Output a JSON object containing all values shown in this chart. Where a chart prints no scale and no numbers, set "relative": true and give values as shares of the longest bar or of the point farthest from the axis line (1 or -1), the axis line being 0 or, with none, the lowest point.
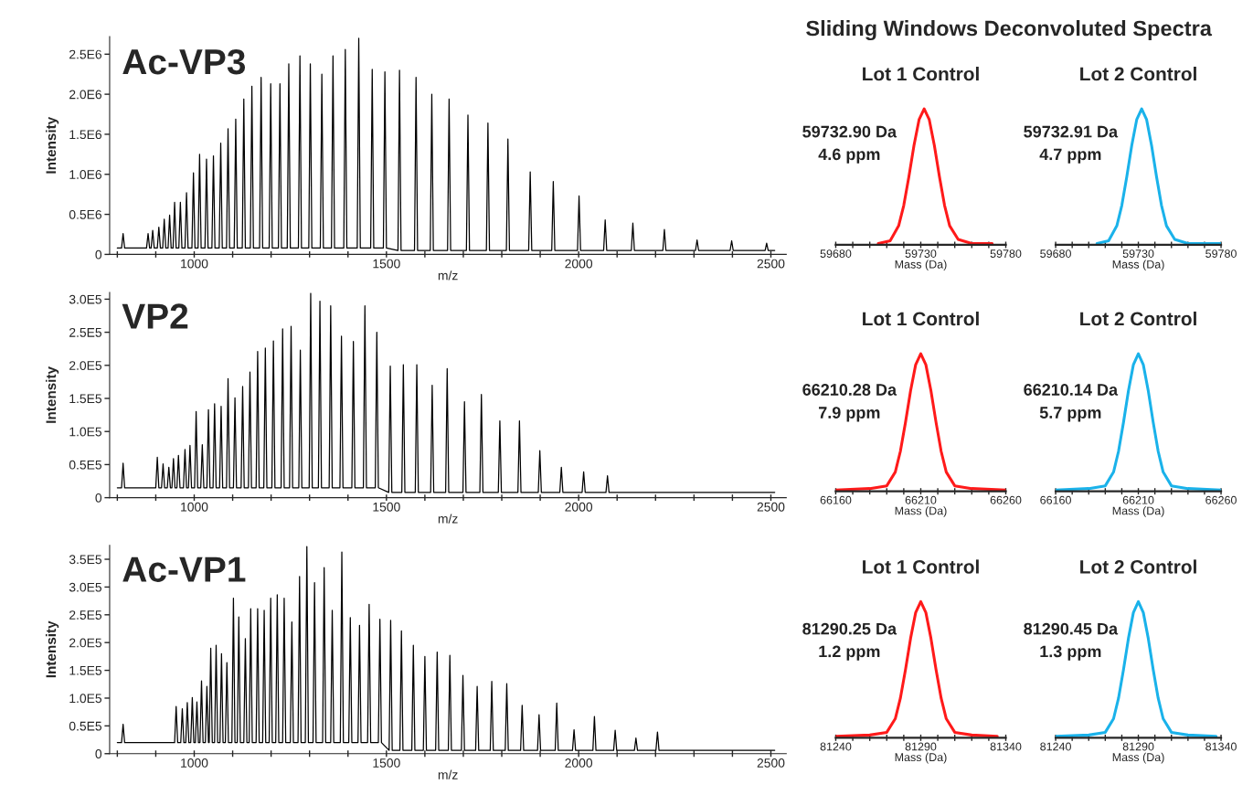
{
  "chart_data": [
    {
      "type": "other",
      "title": "Sliding Windows Deconvoluted Spectra"
    },
    {
      "type": "line",
      "title": "Ac-VP3",
      "xlabel": "m/z",
      "ylabel": "Intensity",
      "xlim": [
        780,
        2540
      ],
      "ylim": [
        0,
        2720000
      ],
      "xticks": [
        {
          "value": 800,
          "label": null
        },
        {
          "value": 900,
          "label": null
        },
        1000,
        {
          "value": 1100,
          "label": null
        },
        {
          "value": 1200,
          "label": null
        },
        {
          "value": 1300,
          "label": null
        },
        {
          "value": 1400,
          "label": null
        },
        1500,
        {
          "value": 1600,
          "label": null
        },
        {
          "value": 1700,
          "label": null
        },
        {
          "value": 1800,
          "label": null
        },
        {
          "value": 1900,
          "label": null
        },
        2000,
        {
          "value": 2100,
          "label": null
        },
        {
          "value": 2200,
          "label": null
        },
        {
          "value": 2300,
          "label": null
        },
        {
          "value": 2400,
          "label": null
        },
        2500
      ],
      "yticks": [
        0,
        {
          "value": 500000,
          "label": "0.5E6"
        },
        {
          "value": 1000000,
          "label": "1.0E6"
        },
        {
          "value": 1500000,
          "label": "1.5E6"
        },
        {
          "value": 2000000,
          "label": "2.0E6"
        },
        {
          "value": 2500000,
          "label": "2.5E6"
        }
      ],
      "x": [
        800,
        811,
        815,
        819,
        876,
        880,
        884,
        888,
        892,
        896,
        904,
        908,
        912,
        918,
        922,
        926,
        932,
        936,
        940,
        945,
        949,
        953,
        960,
        964,
        968,
        976,
        980,
        984,
        994,
        998,
        1002,
        1010,
        1014,
        1018,
        1028,
        1032,
        1036,
        1046,
        1050,
        1054,
        1065,
        1069,
        1073,
        1084,
        1088,
        1092,
        1104,
        1108,
        1112,
        1125,
        1129,
        1133,
        1146,
        1150,
        1154,
        1170,
        1174,
        1178,
        1195,
        1199,
        1203,
        1219,
        1223,
        1227,
        1242,
        1246,
        1250,
        1271,
        1275,
        1279,
        1298,
        1302,
        1306,
        1328,
        1332,
        1336,
        1357,
        1361,
        1365,
        1389,
        1393,
        1397,
        1424,
        1428,
        1432,
        1459,
        1463,
        1467,
        1492,
        1496,
        1500,
        1530,
        1534,
        1538,
        1573,
        1577,
        1581,
        1614,
        1618,
        1622,
        1659,
        1663,
        1667,
        1708,
        1712,
        1716,
        1760,
        1764,
        1768,
        1812,
        1816,
        1820,
        1870,
        1874,
        1878,
        1930,
        1934,
        1938,
        1997,
        2001,
        2005,
        2065,
        2069,
        2073,
        2137,
        2141,
        2145,
        2219,
        2223,
        2227,
        2304,
        2308,
        2312,
        2394,
        2398,
        2402,
        2485,
        2489,
        2493,
        2510
      ],
      "series": [
        {
          "color": "#000000",
          "values": [
            80000,
            80000,
            260000,
            80000,
            80000,
            260000,
            80000,
            80000,
            300000,
            80000,
            80000,
            340000,
            80000,
            80000,
            440000,
            80000,
            80000,
            490000,
            80000,
            80000,
            650000,
            80000,
            80000,
            650000,
            80000,
            80000,
            770000,
            80000,
            80000,
            1020000,
            80000,
            80000,
            1250000,
            80000,
            80000,
            1190000,
            80000,
            80000,
            1230000,
            80000,
            80000,
            1390000,
            80000,
            80000,
            1570000,
            80000,
            80000,
            1690000,
            80000,
            80000,
            1940000,
            80000,
            80000,
            2100000,
            80000,
            80000,
            2210000,
            80000,
            80000,
            2130000,
            80000,
            80000,
            2130000,
            80000,
            80000,
            2380000,
            80000,
            80000,
            2480000,
            80000,
            80000,
            2380000,
            80000,
            80000,
            2250000,
            80000,
            80000,
            2480000,
            80000,
            80000,
            2560000,
            80000,
            80000,
            2700000,
            80000,
            80000,
            2310000,
            80000,
            80000,
            2280000,
            80000,
            50000,
            2300000,
            50000,
            50000,
            2210000,
            50000,
            50000,
            2000000,
            50000,
            50000,
            1940000,
            50000,
            50000,
            1740000,
            50000,
            50000,
            1640000,
            50000,
            50000,
            1440000,
            50000,
            50000,
            1030000,
            50000,
            50000,
            910000,
            50000,
            50000,
            730000,
            50000,
            50000,
            430000,
            50000,
            50000,
            390000,
            50000,
            50000,
            310000,
            50000,
            50000,
            180000,
            50000,
            50000,
            170000,
            50000,
            50000,
            140000,
            50000,
            50000
          ]
        }
      ]
    },
    {
      "type": "line",
      "title": "Lot 1 Control",
      "xlabel": "Mass (Da)",
      "relative": true,
      "xlim": [
        59680,
        59780
      ],
      "xticks": [
        59680,
        {
          "value": 59690,
          "label": null
        },
        {
          "value": 59700,
          "label": null
        },
        {
          "value": 59710,
          "label": null
        },
        {
          "value": 59720,
          "label": null
        },
        59730,
        {
          "value": 59740,
          "label": null
        },
        {
          "value": 59750,
          "label": null
        },
        {
          "value": 59760,
          "label": null
        },
        {
          "value": 59770,
          "label": null
        },
        59780
      ],
      "annotations": [
        "59732.90 Da",
        "4.6 ppm"
      ],
      "x": [
        59705,
        59712,
        59717,
        59720,
        59723,
        59726,
        59729,
        59732,
        59735,
        59738,
        59741,
        59744,
        59747,
        59752,
        59760,
        59772
      ],
      "series": [
        {
          "color": "#ff1a1a",
          "values": [
            0.01,
            0.03,
            0.14,
            0.29,
            0.5,
            0.73,
            0.92,
            1,
            0.92,
            0.73,
            0.5,
            0.29,
            0.14,
            0.04,
            0.01,
            0.01
          ]
        }
      ]
    },
    {
      "type": "line",
      "title": "Lot 2 Control",
      "xlabel": "Mass (Da)",
      "relative": true,
      "xlim": [
        59680,
        59780
      ],
      "xticks": [
        59680,
        {
          "value": 59690,
          "label": null
        },
        {
          "value": 59700,
          "label": null
        },
        {
          "value": 59710,
          "label": null
        },
        {
          "value": 59720,
          "label": null
        },
        59730,
        {
          "value": 59740,
          "label": null
        },
        {
          "value": 59750,
          "label": null
        },
        {
          "value": 59760,
          "label": null
        },
        {
          "value": 59770,
          "label": null
        },
        59780
      ],
      "annotations": [
        "59732.91 Da",
        "4.7 ppm"
      ],
      "x": [
        59705,
        59712,
        59717,
        59720,
        59723,
        59726,
        59729,
        59732,
        59735,
        59738,
        59741,
        59744,
        59747,
        59752,
        59760,
        59780
      ],
      "series": [
        {
          "color": "#1ab2ea",
          "values": [
            0.01,
            0.03,
            0.14,
            0.29,
            0.5,
            0.73,
            0.92,
            1,
            0.92,
            0.73,
            0.5,
            0.29,
            0.14,
            0.04,
            0.01,
            0.01
          ]
        }
      ]
    },
    {
      "type": "line",
      "title": "VP2",
      "xlabel": "m/z",
      "ylabel": "Intensity",
      "xlim": [
        780,
        2540
      ],
      "ylim": [
        0,
        310000
      ],
      "xticks": [
        {
          "value": 800,
          "label": null
        },
        {
          "value": 900,
          "label": null
        },
        1000,
        {
          "value": 1100,
          "label": null
        },
        {
          "value": 1200,
          "label": null
        },
        {
          "value": 1300,
          "label": null
        },
        {
          "value": 1400,
          "label": null
        },
        1500,
        {
          "value": 1600,
          "label": null
        },
        {
          "value": 1700,
          "label": null
        },
        {
          "value": 1800,
          "label": null
        },
        {
          "value": 1900,
          "label": null
        },
        2000,
        {
          "value": 2100,
          "label": null
        },
        {
          "value": 2200,
          "label": null
        },
        {
          "value": 2300,
          "label": null
        },
        {
          "value": 2400,
          "label": null
        },
        2500
      ],
      "yticks": [
        0,
        {
          "value": 50000,
          "label": "0.5E5"
        },
        {
          "value": 100000,
          "label": "1.0E5"
        },
        {
          "value": 150000,
          "label": "1.5E5"
        },
        {
          "value": 200000,
          "label": "2.0E5"
        },
        {
          "value": 250000,
          "label": "2.5E5"
        },
        {
          "value": 300000,
          "label": "3.0E5"
        }
      ],
      "x": [
        800,
        811,
        815,
        819,
        900,
        904,
        908,
        915,
        919,
        923,
        930,
        934,
        938,
        942,
        946,
        950,
        955,
        959,
        963,
        972,
        976,
        980,
        985,
        989,
        993,
        1001,
        1005,
        1009,
        1017,
        1021,
        1025,
        1033,
        1037,
        1041,
        1049,
        1053,
        1057,
        1066,
        1070,
        1074,
        1084,
        1088,
        1092,
        1102,
        1106,
        1110,
        1122,
        1126,
        1130,
        1141,
        1145,
        1149,
        1161,
        1165,
        1169,
        1181,
        1185,
        1189,
        1202,
        1206,
        1210,
        1226,
        1230,
        1234,
        1248,
        1252,
        1256,
        1272,
        1276,
        1280,
        1299,
        1303,
        1307,
        1323,
        1327,
        1331,
        1351,
        1355,
        1359,
        1379,
        1383,
        1387,
        1410,
        1414,
        1418,
        1440,
        1444,
        1448,
        1471,
        1475,
        1479,
        1506,
        1510,
        1514,
        1540,
        1544,
        1548,
        1575,
        1579,
        1583,
        1615,
        1619,
        1623,
        1654,
        1658,
        1662,
        1699,
        1703,
        1707,
        1743,
        1747,
        1751,
        1791,
        1795,
        1799,
        1842,
        1846,
        1850,
        1895,
        1899,
        1903,
        1951,
        1955,
        1959,
        2009,
        2013,
        2017,
        2071,
        2075,
        2079,
        2510
      ],
      "series": [
        {
          "color": "#000000",
          "values": [
            15000,
            15000,
            52000,
            15000,
            15000,
            61000,
            15000,
            15000,
            51000,
            15000,
            15000,
            46000,
            15000,
            15000,
            59000,
            15000,
            15000,
            64000,
            15000,
            15000,
            73000,
            15000,
            15000,
            79000,
            15000,
            15000,
            130000,
            15000,
            15000,
            80000,
            15000,
            15000,
            133000,
            15000,
            15000,
            142000,
            15000,
            15000,
            138000,
            15000,
            15000,
            180000,
            15000,
            15000,
            151000,
            15000,
            15000,
            168000,
            15000,
            15000,
            190000,
            15000,
            15000,
            221000,
            15000,
            15000,
            226000,
            15000,
            15000,
            237000,
            15000,
            15000,
            255000,
            15000,
            15000,
            259000,
            15000,
            15000,
            223000,
            15000,
            15000,
            309000,
            15000,
            15000,
            297000,
            15000,
            15000,
            290000,
            15000,
            15000,
            244000,
            15000,
            15000,
            236000,
            15000,
            15000,
            290000,
            15000,
            15000,
            250000,
            15000,
            8000,
            199000,
            8000,
            8000,
            201000,
            8000,
            8000,
            201000,
            8000,
            8000,
            170000,
            8000,
            8000,
            195000,
            8000,
            8000,
            145000,
            8000,
            8000,
            156000,
            8000,
            8000,
            116000,
            8000,
            8000,
            116000,
            8000,
            8000,
            71000,
            8000,
            8000,
            46000,
            8000,
            8000,
            39000,
            8000,
            8000,
            33000,
            8000,
            8000
          ]
        }
      ]
    },
    {
      "type": "line",
      "title": "Lot 1 Control",
      "xlabel": "Mass (Da)",
      "relative": true,
      "xlim": [
        66160,
        66260
      ],
      "xticks": [
        66160,
        {
          "value": 66170,
          "label": null
        },
        {
          "value": 66180,
          "label": null
        },
        {
          "value": 66190,
          "label": null
        },
        {
          "value": 66200,
          "label": null
        },
        66210,
        {
          "value": 66220,
          "label": null
        },
        {
          "value": 66230,
          "label": null
        },
        {
          "value": 66240,
          "label": null
        },
        {
          "value": 66250,
          "label": null
        },
        66260
      ],
      "annotations": [
        "66210.28 Da",
        "7.9 ppm"
      ],
      "x": [
        66160,
        66180,
        66190,
        66195,
        66198,
        66201,
        66204,
        66207,
        66210,
        66213,
        66216,
        66219,
        66222,
        66225,
        66230,
        66240,
        66260
      ],
      "series": [
        {
          "color": "#ff1a1a",
          "values": [
            0.01,
            0.02,
            0.04,
            0.14,
            0.29,
            0.5,
            0.73,
            0.92,
            1,
            0.92,
            0.73,
            0.5,
            0.29,
            0.14,
            0.04,
            0.02,
            0.01
          ]
        }
      ]
    },
    {
      "type": "line",
      "title": "Lot 2 Control",
      "xlabel": "Mass (Da)",
      "relative": true,
      "xlim": [
        66160,
        66260
      ],
      "xticks": [
        66160,
        {
          "value": 66170,
          "label": null
        },
        {
          "value": 66180,
          "label": null
        },
        {
          "value": 66190,
          "label": null
        },
        {
          "value": 66200,
          "label": null
        },
        66210,
        {
          "value": 66220,
          "label": null
        },
        {
          "value": 66230,
          "label": null
        },
        {
          "value": 66240,
          "label": null
        },
        {
          "value": 66250,
          "label": null
        },
        66260
      ],
      "annotations": [
        "66210.14 Da",
        "5.7 ppm"
      ],
      "x": [
        66160,
        66180,
        66190,
        66195,
        66198,
        66201,
        66204,
        66207,
        66210,
        66213,
        66216,
        66219,
        66222,
        66225,
        66230,
        66240,
        66260
      ],
      "series": [
        {
          "color": "#1ab2ea",
          "values": [
            0.01,
            0.02,
            0.04,
            0.14,
            0.29,
            0.5,
            0.73,
            0.92,
            1,
            0.92,
            0.73,
            0.5,
            0.29,
            0.14,
            0.04,
            0.02,
            0.01
          ]
        }
      ]
    },
    {
      "type": "line",
      "title": "Ac-VP1",
      "xlabel": "m/z",
      "ylabel": "Intensity",
      "xlim": [
        780,
        2540
      ],
      "ylim": [
        0,
        375000
      ],
      "xticks": [
        {
          "value": 800,
          "label": null
        },
        {
          "value": 900,
          "label": null
        },
        1000,
        {
          "value": 1100,
          "label": null
        },
        {
          "value": 1200,
          "label": null
        },
        {
          "value": 1300,
          "label": null
        },
        {
          "value": 1400,
          "label": null
        },
        1500,
        {
          "value": 1600,
          "label": null
        },
        {
          "value": 1700,
          "label": null
        },
        {
          "value": 1800,
          "label": null
        },
        {
          "value": 1900,
          "label": null
        },
        2000,
        {
          "value": 2100,
          "label": null
        },
        {
          "value": 2200,
          "label": null
        },
        {
          "value": 2300,
          "label": null
        },
        {
          "value": 2400,
          "label": null
        },
        2500
      ],
      "yticks": [
        0,
        {
          "value": 50000,
          "label": "0.5E5"
        },
        {
          "value": 100000,
          "label": "1.0E5"
        },
        {
          "value": 150000,
          "label": "1.5E5"
        },
        {
          "value": 200000,
          "label": "2.0E5"
        },
        {
          "value": 250000,
          "label": "2.5E5"
        },
        {
          "value": 300000,
          "label": "3.0E5"
        },
        {
          "value": 350000,
          "label": "3.5E5"
        }
      ],
      "x": [
        800,
        811,
        815,
        819,
        949,
        953,
        957,
        965,
        969,
        973,
        978,
        982,
        986,
        991,
        995,
        999,
        1003,
        1007,
        1011,
        1015,
        1019,
        1023,
        1029,
        1033,
        1037,
        1039,
        1043,
        1047,
        1053,
        1057,
        1061,
        1067,
        1071,
        1075,
        1081,
        1085,
        1089,
        1098,
        1102,
        1106,
        1112,
        1116,
        1120,
        1129,
        1133,
        1137,
        1143,
        1147,
        1151,
        1161,
        1165,
        1169,
        1178,
        1182,
        1186,
        1195,
        1199,
        1203,
        1212,
        1216,
        1220,
        1230,
        1234,
        1238,
        1250,
        1254,
        1258,
        1270,
        1274,
        1278,
        1289,
        1293,
        1297,
        1309,
        1313,
        1317,
        1334,
        1338,
        1342,
        1355,
        1359,
        1363,
        1380,
        1384,
        1388,
        1402,
        1406,
        1410,
        1426,
        1430,
        1434,
        1451,
        1455,
        1459,
        1479,
        1483,
        1487,
        1507,
        1511,
        1515,
        1535,
        1539,
        1543,
        1566,
        1570,
        1574,
        1596,
        1600,
        1604,
        1628,
        1632,
        1636,
        1661,
        1665,
        1669,
        1695,
        1699,
        1703,
        1732,
        1736,
        1740,
        1770,
        1774,
        1778,
        1809,
        1813,
        1817,
        1849,
        1853,
        1857,
        1893,
        1897,
        1901,
        1939,
        1943,
        1947,
        1984,
        1988,
        1992,
        2037,
        2041,
        2045,
        2091,
        2095,
        2099,
        2145,
        2149,
        2153,
        2201,
        2205,
        2209,
        2510
      ],
      "series": [
        {
          "color": "#000000",
          "values": [
            20000,
            20000,
            53000,
            20000,
            20000,
            85000,
            20000,
            20000,
            81000,
            20000,
            20000,
            92000,
            20000,
            20000,
            101000,
            20000,
            20000,
            93000,
            20000,
            20000,
            131000,
            20000,
            20000,
            121000,
            20000,
            20000,
            190000,
            20000,
            20000,
            195000,
            20000,
            20000,
            180000,
            20000,
            20000,
            164000,
            20000,
            20000,
            280000,
            20000,
            20000,
            246000,
            20000,
            20000,
            207000,
            20000,
            20000,
            261000,
            20000,
            20000,
            261000,
            20000,
            20000,
            258000,
            20000,
            20000,
            280000,
            20000,
            20000,
            286000,
            20000,
            20000,
            280000,
            20000,
            20000,
            237000,
            20000,
            20000,
            319000,
            20000,
            20000,
            373000,
            20000,
            20000,
            308000,
            20000,
            20000,
            335000,
            20000,
            20000,
            258000,
            20000,
            20000,
            363000,
            20000,
            20000,
            245000,
            20000,
            20000,
            231000,
            20000,
            20000,
            269000,
            20000,
            20000,
            242000,
            20000,
            6000,
            240000,
            6000,
            6000,
            221000,
            6000,
            6000,
            195000,
            6000,
            6000,
            175000,
            6000,
            6000,
            183000,
            6000,
            6000,
            177000,
            6000,
            6000,
            141000,
            6000,
            6000,
            121000,
            6000,
            6000,
            130000,
            6000,
            6000,
            126000,
            6000,
            6000,
            87000,
            6000,
            6000,
            70000,
            6000,
            6000,
            91000,
            6000,
            6000,
            43000,
            6000,
            6000,
            67000,
            6000,
            6000,
            42000,
            6000,
            6000,
            28000,
            6000,
            6000,
            39000,
            6000,
            6000
          ]
        }
      ]
    },
    {
      "type": "line",
      "title": "Lot 1 Control",
      "xlabel": "Mass (Da)",
      "relative": true,
      "xlim": [
        81240,
        81340
      ],
      "xticks": [
        81240,
        {
          "value": 81250,
          "label": null
        },
        {
          "value": 81260,
          "label": null
        },
        {
          "value": 81270,
          "label": null
        },
        {
          "value": 81280,
          "label": null
        },
        81290,
        {
          "value": 81300,
          "label": null
        },
        {
          "value": 81310,
          "label": null
        },
        {
          "value": 81320,
          "label": null
        },
        {
          "value": 81330,
          "label": null
        },
        81340
      ],
      "annotations": [
        "81290.25 Da",
        "1.2 ppm"
      ],
      "x": [
        81240,
        81260,
        81270,
        81275,
        81278,
        81281,
        81284,
        81287,
        81290,
        81293,
        81296,
        81299,
        81302,
        81305,
        81310,
        81320,
        81335
      ],
      "series": [
        {
          "color": "#ff1a1a",
          "values": [
            0.01,
            0.02,
            0.04,
            0.14,
            0.29,
            0.5,
            0.73,
            0.92,
            1,
            0.92,
            0.73,
            0.5,
            0.29,
            0.14,
            0.04,
            0.02,
            0.01
          ]
        }
      ]
    },
    {
      "type": "line",
      "title": "Lot 2 Control",
      "xlabel": "Mass (Da)",
      "relative": true,
      "xlim": [
        81240,
        81340
      ],
      "xticks": [
        81240,
        {
          "value": 81250,
          "label": null
        },
        {
          "value": 81260,
          "label": null
        },
        {
          "value": 81270,
          "label": null
        },
        {
          "value": 81280,
          "label": null
        },
        81290,
        {
          "value": 81300,
          "label": null
        },
        {
          "value": 81310,
          "label": null
        },
        {
          "value": 81320,
          "label": null
        },
        {
          "value": 81330,
          "label": null
        },
        81340
      ],
      "annotations": [
        "81290.45 Da",
        "1.3 ppm"
      ],
      "x": [
        81240,
        81260,
        81270,
        81275,
        81278,
        81281,
        81284,
        81287,
        81290,
        81293,
        81296,
        81299,
        81302,
        81305,
        81310,
        81320,
        81337
      ],
      "series": [
        {
          "color": "#1ab2ea",
          "values": [
            0.01,
            0.02,
            0.04,
            0.14,
            0.29,
            0.5,
            0.73,
            0.92,
            1,
            0.92,
            0.73,
            0.5,
            0.29,
            0.14,
            0.04,
            0.02,
            0.01
          ]
        }
      ]
    }
  ]
}
